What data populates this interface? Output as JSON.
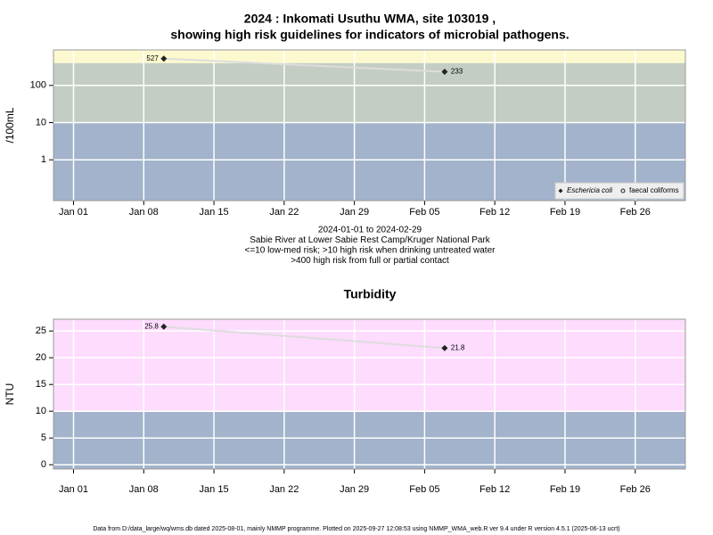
{
  "footer": "Data from D:/data_large/wq/wms.db dated 2025-08-01, mainly NMMP programme. Plotted on 2025-09-27 12:08:53 using NMMP_WMA_web.R ver 9.4 under R version 4.5.1 (2025-06-13 ucrt)",
  "chart_data": [
    {
      "type": "line",
      "title": [
        "2024 : Inkomati Usuthu WMA, site 103019 ,",
        "showing high risk guidelines for indicators of microbial pathogens."
      ],
      "notes": [
        "2024-01-01 to 2024-02-29",
        "Sabie River at Lower Sabie Rest Camp/Kruger National Park",
        "<=10 low-med risk; >10 high risk when drinking untreated water",
        ">400 high risk from full or partial contact"
      ],
      "y_label": "/100mL",
      "x": [
        "2024-01-10",
        "2024-02-07"
      ],
      "series": [
        {
          "name": "Eschericia coli",
          "color": "#222222",
          "marker": "diamond",
          "values": [
            527,
            233
          ]
        },
        {
          "name": "faecal coliforms",
          "color": "#222222",
          "marker": "circle",
          "values": [
            null,
            null
          ]
        }
      ],
      "line_color": "#dddddd",
      "log_scale": true,
      "ylim": [
        0.08,
        900
      ],
      "yticks": [
        1,
        10,
        100
      ],
      "xlim": [
        "2023-12-30",
        "2024-03-02"
      ],
      "xticks": [
        {
          "value": "2024-01-01",
          "label": "Jan 01"
        },
        {
          "value": "2024-01-08",
          "label": "Jan 08"
        },
        {
          "value": "2024-01-15",
          "label": "Jan 15"
        },
        {
          "value": "2024-01-22",
          "label": "Jan 22"
        },
        {
          "value": "2024-01-29",
          "label": "Jan 29"
        },
        {
          "value": "2024-02-05",
          "label": "Feb 05"
        },
        {
          "value": "2024-02-12",
          "label": "Feb 12"
        },
        {
          "value": "2024-02-19",
          "label": "Feb 19"
        },
        {
          "value": "2024-02-26",
          "label": "Feb 26"
        }
      ],
      "bands": [
        {
          "from": 0.08,
          "to": 10,
          "color": "#a2b3cb"
        },
        {
          "from": 10,
          "to": 400,
          "color": "#c3cdc3"
        },
        {
          "from": 400,
          "to": 900,
          "color": "#fdf9cf"
        }
      ],
      "grid": true,
      "legend": "bottom-right"
    },
    {
      "type": "line",
      "title": [
        "Turbidity"
      ],
      "y_label": "NTU",
      "x": [
        "2024-01-10",
        "2024-02-07"
      ],
      "series": [
        {
          "color": "#222222",
          "marker": "diamond",
          "values": [
            25.8,
            21.8
          ]
        }
      ],
      "line_color": "#dddddd",
      "log_scale": false,
      "ylim": [
        -0.8,
        27.2
      ],
      "yticks": [
        0,
        5,
        10,
        15,
        20,
        25
      ],
      "xlim": [
        "2023-12-30",
        "2024-03-02"
      ],
      "xticks": [
        {
          "value": "2024-01-01",
          "label": "Jan 01"
        },
        {
          "value": "2024-01-08",
          "label": "Jan 08"
        },
        {
          "value": "2024-01-15",
          "label": "Jan 15"
        },
        {
          "value": "2024-01-22",
          "label": "Jan 22"
        },
        {
          "value": "2024-01-29",
          "label": "Jan 29"
        },
        {
          "value": "2024-02-05",
          "label": "Feb 05"
        },
        {
          "value": "2024-02-12",
          "label": "Feb 12"
        },
        {
          "value": "2024-02-19",
          "label": "Feb 19"
        },
        {
          "value": "2024-02-26",
          "label": "Feb 26"
        }
      ],
      "bands": [
        {
          "from": -0.8,
          "to": 10,
          "color": "#a2b3cb"
        },
        {
          "from": 10,
          "to": 27.2,
          "color": "#fddcfd"
        }
      ],
      "grid": true
    }
  ]
}
